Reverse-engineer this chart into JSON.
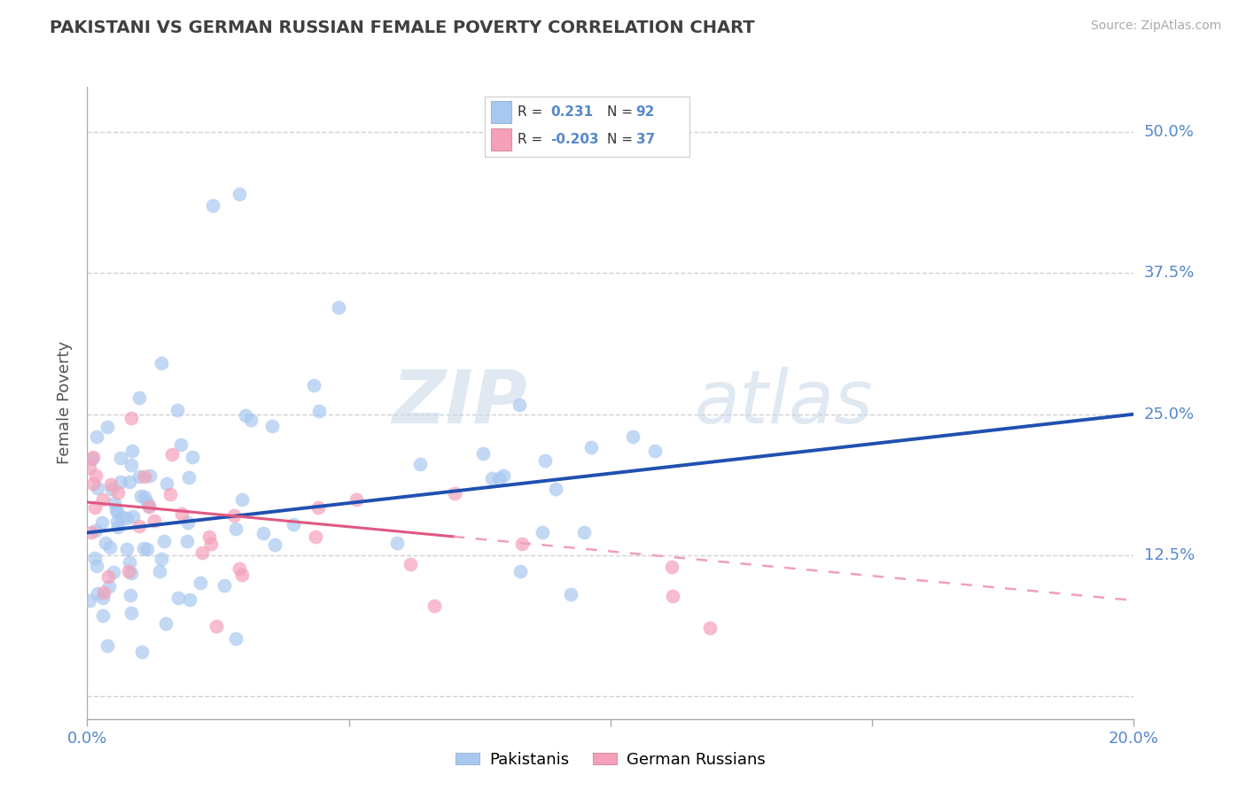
{
  "title": "PAKISTANI VS GERMAN RUSSIAN FEMALE POVERTY CORRELATION CHART",
  "source": "Source: ZipAtlas.com",
  "ylabel": "Female Poverty",
  "ytick_vals": [
    0.0,
    0.125,
    0.25,
    0.375,
    0.5
  ],
  "ytick_labels": [
    "",
    "12.5%",
    "25.0%",
    "37.5%",
    "50.0%"
  ],
  "xtick_vals": [
    0.0,
    0.05,
    0.1,
    0.15,
    0.2
  ],
  "xtick_labels": [
    "0.0%",
    "",
    "",
    "",
    "20.0%"
  ],
  "xlim": [
    0.0,
    0.2
  ],
  "ylim": [
    -0.02,
    0.54
  ],
  "r_pakistani": 0.231,
  "n_pakistani": 92,
  "r_german_russian": -0.203,
  "n_german_russian": 37,
  "blue_color": "#a8c8f0",
  "pink_color": "#f4a0b8",
  "blue_line_color": "#2050b0",
  "pink_line_color": "#e05880",
  "pink_dash_color": "#f0a0b8",
  "legend_blue_label": "Pakistanis",
  "legend_pink_label": "German Russians",
  "watermark_zip": "ZIP",
  "watermark_atlas": "atlas",
  "background_color": "#ffffff",
  "grid_color": "#cccccc",
  "label_color": "#5588cc",
  "title_color": "#404040",
  "axis_color": "#aaaaaa",
  "pak_line_x0": 0.0,
  "pak_line_y0": 0.145,
  "pak_line_x1": 0.2,
  "pak_line_y1": 0.25,
  "gr_line_x0": 0.0,
  "gr_line_y0": 0.172,
  "gr_line_x1": 0.2,
  "gr_line_y1": 0.085,
  "gr_solid_xend": 0.07,
  "marker_size": 130,
  "marker_alpha": 0.7
}
